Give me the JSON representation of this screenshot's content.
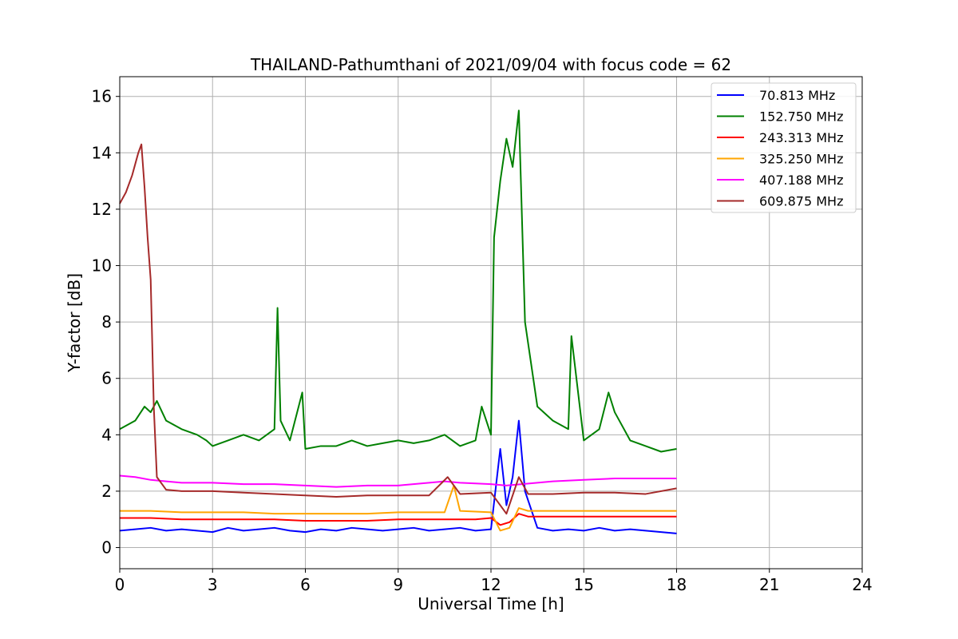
{
  "chart_data": {
    "type": "line",
    "title": "THAILAND-Pathumthani of 2021/09/04 with focus code = 62",
    "xlabel": "Universal Time [h]",
    "ylabel": "Y-factor [dB]",
    "xlim": [
      0,
      24
    ],
    "ylim": [
      -0.75,
      16.7
    ],
    "xticks": [
      0,
      3,
      6,
      9,
      12,
      15,
      18,
      21,
      24
    ],
    "yticks": [
      0,
      2,
      4,
      6,
      8,
      10,
      12,
      14,
      16
    ],
    "grid": true,
    "legend_position": "top-right",
    "series": [
      {
        "name": " 70.813 MHz",
        "color": "#0000ff",
        "x": [
          0,
          0.5,
          1,
          1.5,
          2,
          2.5,
          3,
          3.5,
          4,
          4.5,
          5,
          5.5,
          6,
          6.5,
          7,
          7.5,
          8,
          8.5,
          9,
          9.5,
          10,
          10.5,
          11,
          11.5,
          12,
          12.3,
          12.5,
          12.7,
          12.9,
          13.1,
          13.5,
          14,
          14.5,
          15,
          15.5,
          16,
          16.5,
          17,
          17.5,
          18
        ],
        "y": [
          0.6,
          0.65,
          0.7,
          0.6,
          0.65,
          0.6,
          0.55,
          0.7,
          0.6,
          0.65,
          0.7,
          0.6,
          0.55,
          0.65,
          0.6,
          0.7,
          0.65,
          0.6,
          0.65,
          0.7,
          0.6,
          0.65,
          0.7,
          0.6,
          0.65,
          3.5,
          1.5,
          2.5,
          4.5,
          2.0,
          0.7,
          0.6,
          0.65,
          0.6,
          0.7,
          0.6,
          0.65,
          0.6,
          0.55,
          0.5
        ]
      },
      {
        "name": "152.750 MHz",
        "color": "#008000",
        "x": [
          0,
          0.5,
          0.8,
          1,
          1.2,
          1.5,
          2,
          2.5,
          2.8,
          3,
          3.5,
          4,
          4.5,
          5,
          5.1,
          5.2,
          5.5,
          5.9,
          6,
          6.5,
          7,
          7.5,
          8,
          8.5,
          9,
          9.5,
          10,
          10.5,
          11,
          11.5,
          11.7,
          12,
          12.1,
          12.3,
          12.5,
          12.7,
          12.9,
          13.1,
          13.3,
          13.5,
          14,
          14.5,
          14.6,
          15,
          15.5,
          15.8,
          16,
          16.5,
          17,
          17.5,
          18
        ],
        "y": [
          4.2,
          4.5,
          5.0,
          4.8,
          5.2,
          4.5,
          4.2,
          4.0,
          3.8,
          3.6,
          3.8,
          4.0,
          3.8,
          4.2,
          8.5,
          4.5,
          3.8,
          5.5,
          3.5,
          3.6,
          3.6,
          3.8,
          3.6,
          3.7,
          3.8,
          3.7,
          3.8,
          4.0,
          3.6,
          3.8,
          5.0,
          4.0,
          11.0,
          13.0,
          14.5,
          13.5,
          15.5,
          8.0,
          6.5,
          5.0,
          4.5,
          4.2,
          7.5,
          3.8,
          4.2,
          5.5,
          4.8,
          3.8,
          3.6,
          3.4,
          3.5
        ]
      },
      {
        "name": "243.313 MHz",
        "color": "#ff0000",
        "x": [
          0,
          1,
          2,
          3,
          4,
          5,
          6,
          7,
          8,
          9,
          10,
          11,
          11.5,
          12,
          12.3,
          12.6,
          12.9,
          13.2,
          14,
          15,
          16,
          17,
          18
        ],
        "y": [
          1.05,
          1.05,
          1.0,
          1.0,
          1.0,
          1.0,
          0.95,
          0.95,
          0.95,
          1.0,
          1.0,
          1.0,
          1.0,
          1.05,
          0.8,
          0.9,
          1.2,
          1.1,
          1.1,
          1.1,
          1.1,
          1.1,
          1.1
        ]
      },
      {
        "name": "325.250 MHz",
        "color": "#ffa500",
        "x": [
          0,
          1,
          2,
          3,
          4,
          5,
          6,
          7,
          8,
          9,
          10,
          10.5,
          10.8,
          11,
          12,
          12.3,
          12.6,
          12.9,
          13.2,
          14,
          15,
          16,
          17,
          18
        ],
        "y": [
          1.3,
          1.3,
          1.25,
          1.25,
          1.25,
          1.2,
          1.2,
          1.2,
          1.2,
          1.25,
          1.25,
          1.25,
          2.2,
          1.3,
          1.25,
          0.6,
          0.7,
          1.4,
          1.3,
          1.3,
          1.3,
          1.3,
          1.3,
          1.3
        ]
      },
      {
        "name": "407.188 MHz",
        "color": "#ff00ff",
        "x": [
          0,
          0.5,
          1,
          1.5,
          2,
          3,
          4,
          5,
          6,
          7,
          8,
          9,
          10,
          10.5,
          11,
          12,
          12.5,
          13,
          14,
          15,
          16,
          17,
          18
        ],
        "y": [
          2.55,
          2.5,
          2.4,
          2.35,
          2.3,
          2.3,
          2.25,
          2.25,
          2.2,
          2.15,
          2.2,
          2.2,
          2.3,
          2.35,
          2.3,
          2.25,
          2.2,
          2.25,
          2.35,
          2.4,
          2.45,
          2.45,
          2.45
        ]
      },
      {
        "name": "609.875 MHz",
        "color": "#a52a2a",
        "x": [
          0,
          0.2,
          0.4,
          0.6,
          0.7,
          0.8,
          0.9,
          1.0,
          1.1,
          1.2,
          1.5,
          2,
          3,
          4,
          5,
          6,
          7,
          8,
          9,
          10,
          10.6,
          11,
          12,
          12.5,
          12.9,
          13.2,
          14,
          15,
          16,
          17,
          18
        ],
        "y": [
          12.2,
          12.6,
          13.2,
          14.0,
          14.3,
          12.8,
          11.0,
          9.5,
          5.0,
          2.5,
          2.05,
          2.0,
          2.0,
          1.95,
          1.9,
          1.85,
          1.8,
          1.85,
          1.85,
          1.85,
          2.5,
          1.9,
          1.95,
          1.2,
          2.5,
          1.9,
          1.9,
          1.95,
          1.95,
          1.9,
          2.1
        ]
      }
    ]
  }
}
